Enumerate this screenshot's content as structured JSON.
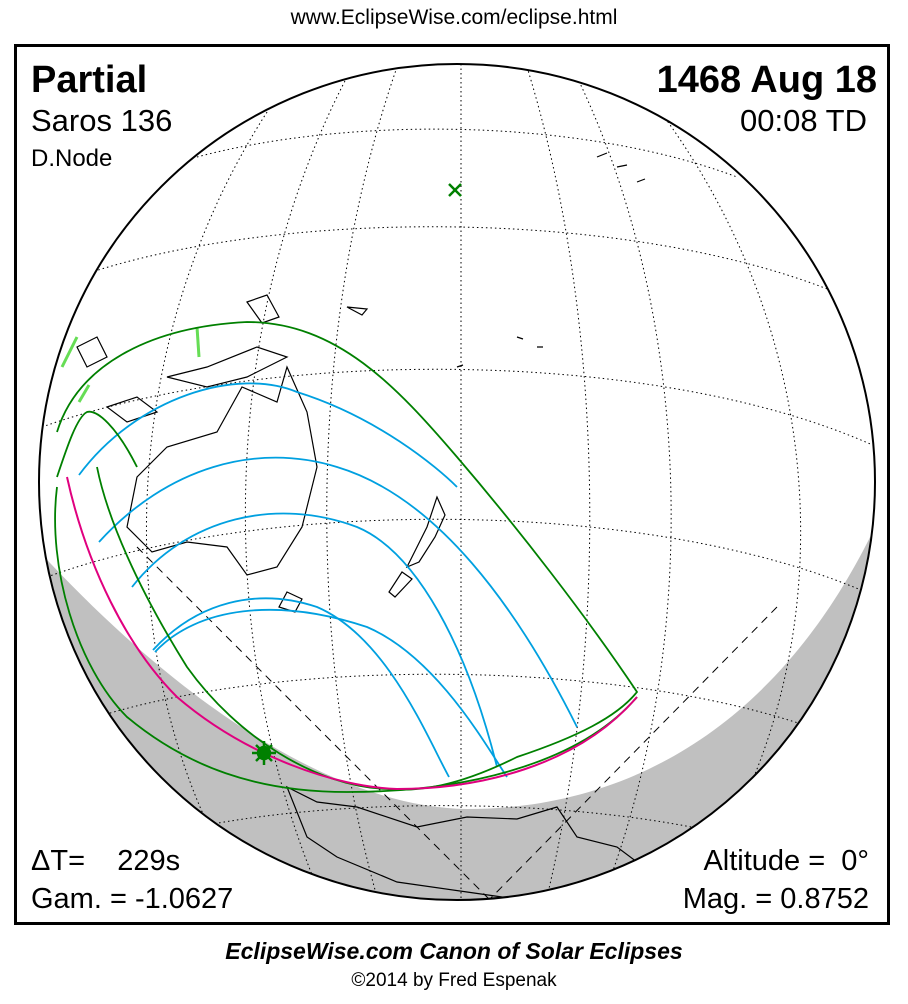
{
  "header": {
    "url": "www.EclipseWise.com/eclipse.html"
  },
  "eclipse": {
    "type": "Partial",
    "saros": "Saros 136",
    "node": "D.Node",
    "date": "1468 Aug 18",
    "time": "00:08 TD",
    "delta_t": "ΔT=    229s",
    "gamma": "Gam. = -1.0627",
    "altitude": "Altitude =  0°",
    "magnitude": "Mag. = 0.8752"
  },
  "footer": {
    "canon": "EclipseWise.com Canon of Solar Eclipses",
    "copyright": "©2014 by Fred Espenak"
  },
  "map": {
    "colors": {
      "globe_fill": "#ffffff",
      "night_shade": "#c0c0c0",
      "penumbra_limit": "#008000",
      "magnitude_curves": "#00a0e0",
      "sunrise_sunset_curve": "#e0007f",
      "land_outline": "#000000",
      "highlight_land": "#66dd55"
    },
    "markers": [
      "greatest-eclipse-x-marker",
      "subsolar-star-marker"
    ]
  }
}
